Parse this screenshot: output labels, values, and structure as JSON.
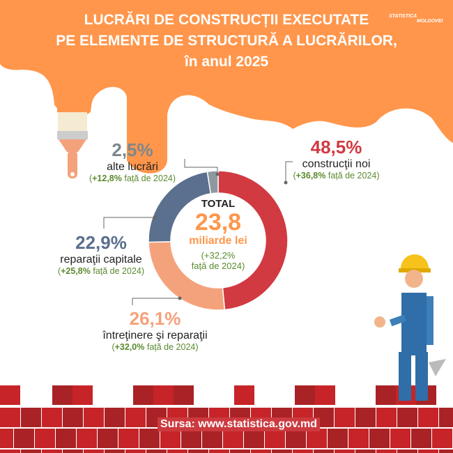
{
  "header": {
    "title_lines": [
      "LUCRĂRI DE CONSTRUCȚII EXECUTATE",
      "PE ELEMENTE DE STRUCTURĂ A LUCRĂRILOR,",
      "în anul 2025"
    ],
    "logo": {
      "line1": "STATISTICA",
      "line2": "MOLDOVEI"
    }
  },
  "colors": {
    "header": "#ff964b",
    "construction_new": "#d13a41",
    "maintenance": "#f4a27c",
    "capital_repairs": "#5b6f8e",
    "other": "#8e999f",
    "change_text": "#5a8a2e",
    "bricks": [
      "#c62428",
      "#a92226"
    ]
  },
  "chart_data": {
    "type": "pie",
    "donut": true,
    "start": "top",
    "direction": "clockwise",
    "center": {
      "label": "TOTAL",
      "value": "23,8",
      "unit": "miliarde lei",
      "change": "(+32,2%",
      "change2": "față de 2024)"
    },
    "slices": [
      {
        "label": "construcţii noi",
        "value": 48.5,
        "value_text": "48,5%",
        "change": "+36,8%",
        "change_suffix": " față de 2024)",
        "color": "#d13a41"
      },
      {
        "label": "întreţinere şi reparaţii",
        "value": 26.1,
        "value_text": "26,1%",
        "change": "+32,0%",
        "change_suffix": " față de 2024)",
        "color": "#f4a27c"
      },
      {
        "label": "reparaţii capitale",
        "value": 22.9,
        "value_text": "22,9%",
        "change": "+25,8%",
        "change_suffix": " față de 2024)",
        "color": "#5b6f8e"
      },
      {
        "label": "alte lucrări",
        "value": 2.5,
        "value_text": "2,5%",
        "change": "+12,8%",
        "change_suffix": " față de 2024)",
        "color": "#8e999f"
      }
    ]
  },
  "footer": {
    "source": "Sursa: www.statistica.gov.md"
  }
}
